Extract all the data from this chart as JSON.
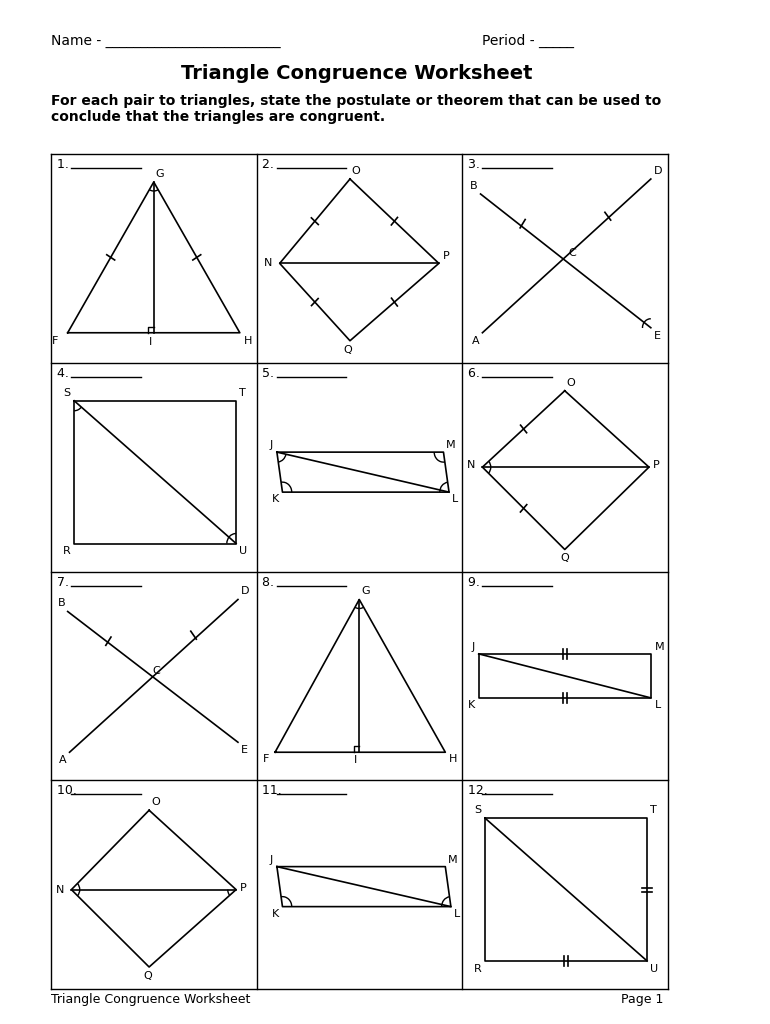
{
  "title": "Triangle Congruence Worksheet",
  "name_label": "Name - ",
  "period_label": "Period - _____",
  "instructions": "For each pair to triangles, state the postulate or theorem that can be used to\nconclude that the triangles are congruent.",
  "footer": "Triangle Congruence Worksheet",
  "page": "Page 1",
  "bg_color": "#ffffff",
  "grid_rows": 4,
  "grid_cols": 3
}
